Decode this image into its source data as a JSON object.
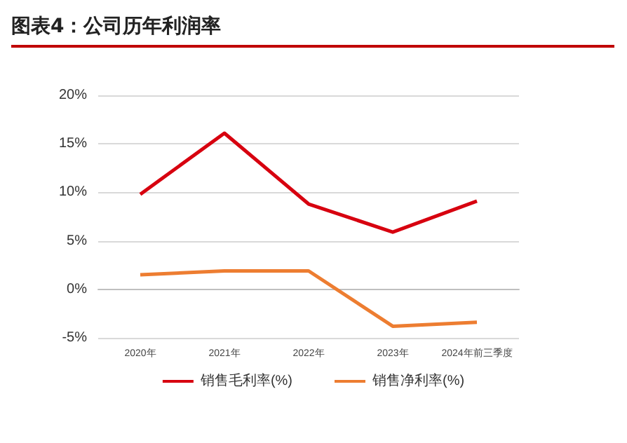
{
  "chart_data": {
    "type": "line",
    "title": "图表4：公司历年利润率",
    "categories": [
      "2020年",
      "2021年",
      "2022年",
      "2023年",
      "2024年前三季度"
    ],
    "series": [
      {
        "name": "销售毛利率(%)",
        "color": "#d7000f",
        "values": [
          9.8,
          16.1,
          8.8,
          5.9,
          9.1
        ]
      },
      {
        "name": "销售净利率(%)",
        "color": "#ed7d31",
        "values": [
          1.5,
          1.9,
          1.9,
          -3.8,
          -3.4
        ]
      }
    ],
    "ylim": [
      -5,
      20
    ],
    "yticks": [
      {
        "value": -5,
        "label": "-5%"
      },
      {
        "value": 0,
        "label": "0%"
      },
      {
        "value": 5,
        "label": "5%"
      },
      {
        "value": 10,
        "label": "10%"
      },
      {
        "value": 15,
        "label": "15%"
      },
      {
        "value": 20,
        "label": "20%"
      }
    ],
    "grid": "y",
    "legend": "bottom",
    "marker": "none",
    "line_style": "solid"
  }
}
